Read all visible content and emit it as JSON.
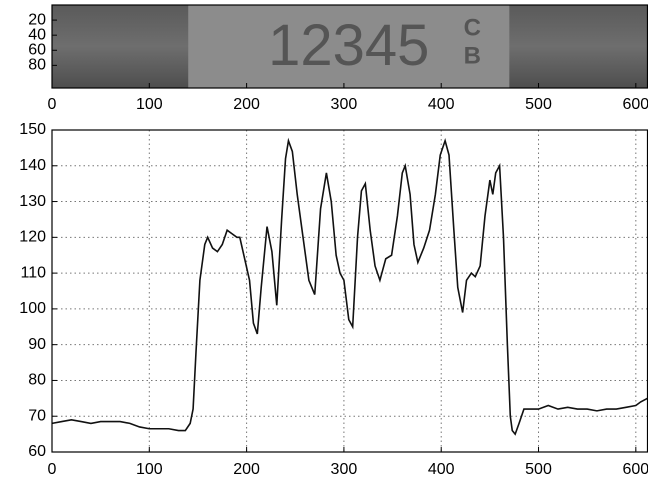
{
  "chart_data": [
    {
      "type": "image",
      "plate_text": "12345",
      "plate_suffix": [
        "C",
        "B"
      ],
      "xlim": [
        0,
        612
      ],
      "xticks": [
        0,
        100,
        200,
        300,
        400,
        500,
        600
      ],
      "ylim": [
        0,
        110
      ],
      "yticks": [
        20,
        40,
        60,
        80
      ],
      "y_inverted": true
    },
    {
      "type": "line",
      "color": "#111111",
      "grid": true,
      "xlim": [
        0,
        612
      ],
      "xticks": [
        0,
        100,
        200,
        300,
        400,
        500,
        600
      ],
      "ylim": [
        60,
        150
      ],
      "yticks": [
        60,
        70,
        80,
        90,
        100,
        110,
        120,
        130,
        140,
        150
      ],
      "x": [
        0,
        10,
        20,
        30,
        40,
        50,
        60,
        70,
        80,
        90,
        100,
        110,
        120,
        130,
        137,
        142,
        145,
        148,
        152,
        157,
        160,
        165,
        170,
        175,
        180,
        185,
        190,
        193,
        198,
        203,
        207,
        211,
        215,
        221,
        226,
        231,
        236,
        240,
        243,
        247,
        252,
        258,
        264,
        270,
        276,
        282,
        287,
        292,
        296,
        300,
        305,
        309,
        314,
        318,
        322,
        327,
        332,
        337,
        343,
        349,
        355,
        360,
        363,
        368,
        372,
        376,
        382,
        388,
        394,
        399,
        404,
        408,
        413,
        417,
        422,
        426,
        431,
        435,
        440,
        445,
        450,
        453,
        456,
        460,
        464,
        468,
        471,
        473,
        476,
        480,
        485,
        491,
        500,
        510,
        520,
        530,
        540,
        550,
        560,
        570,
        580,
        590,
        600,
        605,
        612
      ],
      "y": [
        68,
        68.5,
        69,
        68.5,
        68,
        68.5,
        68.5,
        68.5,
        68,
        67,
        66.5,
        66.5,
        66.5,
        66,
        66,
        68,
        72,
        88,
        108,
        118,
        120,
        117,
        116,
        118,
        122,
        121,
        120,
        120,
        114,
        108,
        96,
        93,
        106,
        123,
        116,
        101,
        125,
        142,
        147,
        144,
        132,
        120,
        108,
        104,
        128,
        138,
        130,
        115,
        110,
        108,
        97,
        95,
        120,
        133,
        135,
        122,
        112,
        108,
        114,
        115,
        126,
        138,
        140,
        132,
        118,
        113,
        117,
        122,
        132,
        143,
        147,
        143,
        122,
        106,
        99,
        108,
        110,
        109,
        112,
        126,
        136,
        132,
        138,
        140,
        120,
        90,
        70,
        66,
        65,
        68,
        72,
        72,
        72,
        73,
        72,
        72.5,
        72,
        72,
        71.5,
        72,
        72,
        72.5,
        73,
        74,
        75
      ]
    }
  ]
}
